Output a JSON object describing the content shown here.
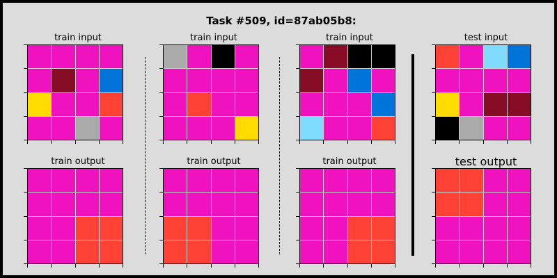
{
  "title": "Task #509, id=87ab05b8:",
  "colors": {
    "0": "#000000",
    "1": "#0074D9",
    "2": "#FF4136",
    "4": "#FFDC00",
    "5": "#AAAAAA",
    "6": "#F012BE",
    "8": "#7FDBFF",
    "9": "#870C25"
  },
  "panels": [
    {
      "label": "train input",
      "grid": [
        [
          6,
          6,
          6,
          6
        ],
        [
          6,
          9,
          6,
          1
        ],
        [
          4,
          6,
          6,
          2
        ],
        [
          6,
          6,
          5,
          6
        ]
      ]
    },
    {
      "label": "train input",
      "grid": [
        [
          5,
          6,
          0,
          6
        ],
        [
          6,
          6,
          6,
          6
        ],
        [
          6,
          2,
          6,
          6
        ],
        [
          6,
          6,
          6,
          4
        ]
      ]
    },
    {
      "label": "train input",
      "grid": [
        [
          6,
          9,
          0,
          0
        ],
        [
          9,
          6,
          1,
          6
        ],
        [
          6,
          6,
          6,
          1
        ],
        [
          8,
          6,
          6,
          2
        ]
      ]
    },
    {
      "label": "test input",
      "grid": [
        [
          2,
          6,
          8,
          1
        ],
        [
          6,
          6,
          6,
          6
        ],
        [
          4,
          6,
          9,
          9
        ],
        [
          0,
          5,
          6,
          6
        ]
      ]
    },
    {
      "label": "train output",
      "grid": [
        [
          6,
          6,
          6,
          6
        ],
        [
          6,
          6,
          6,
          6
        ],
        [
          6,
          6,
          2,
          2
        ],
        [
          6,
          6,
          2,
          2
        ]
      ]
    },
    {
      "label": "train output",
      "grid": [
        [
          6,
          6,
          6,
          6
        ],
        [
          6,
          6,
          6,
          6
        ],
        [
          2,
          2,
          6,
          6
        ],
        [
          2,
          2,
          6,
          6
        ]
      ]
    },
    {
      "label": "train output",
      "grid": [
        [
          6,
          6,
          6,
          6
        ],
        [
          6,
          6,
          6,
          6
        ],
        [
          6,
          6,
          2,
          2
        ],
        [
          6,
          6,
          2,
          2
        ]
      ]
    },
    {
      "label": "test output",
      "grid": [
        [
          2,
          2,
          6,
          6
        ],
        [
          2,
          2,
          6,
          6
        ],
        [
          6,
          6,
          6,
          6
        ],
        [
          6,
          6,
          6,
          6
        ]
      ]
    }
  ]
}
